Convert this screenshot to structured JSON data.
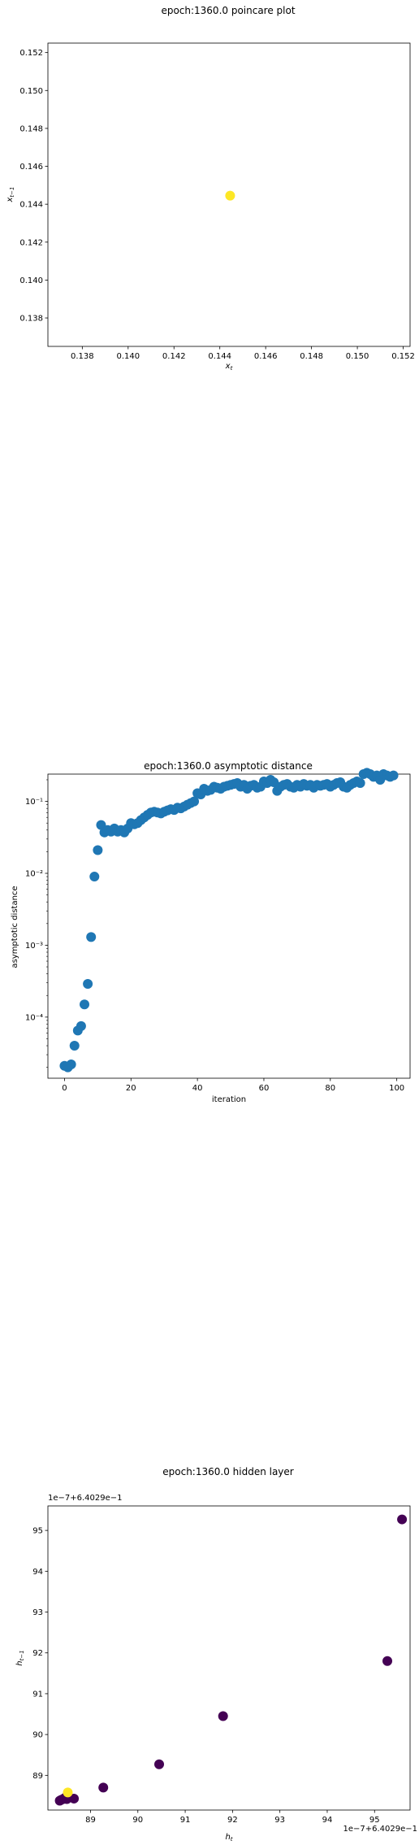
{
  "chart_data": [
    {
      "type": "scatter",
      "title": "epoch:1360.0 poincare plot",
      "xlabel": "x_t",
      "ylabel": "x_{t-1}",
      "xlim": [
        0.1365,
        0.1523
      ],
      "ylim": [
        0.1365,
        0.1525
      ],
      "xticks": [
        "0.138",
        "0.140",
        "0.142",
        "0.144",
        "0.146",
        "0.148",
        "0.150",
        "0.152"
      ],
      "yticks": [
        "0.138",
        "0.140",
        "0.142",
        "0.144",
        "0.146",
        "0.148",
        "0.150",
        "0.152"
      ],
      "points": [
        {
          "x": 0.14445,
          "y": 0.14445,
          "color": "#fde725"
        }
      ],
      "grid": false
    },
    {
      "type": "scatter",
      "title": "epoch:1360.0 asymptotic distance",
      "xlabel": "iteration",
      "ylabel": "asymptotic distance",
      "yscale": "log",
      "xlim": [
        -5,
        104
      ],
      "ylim_log10": [
        -4.85,
        -0.62
      ],
      "xticks": [
        "0",
        "20",
        "40",
        "60",
        "80",
        "100"
      ],
      "yticks": [
        "10⁻⁴",
        "10⁻³",
        "10⁻²",
        "10⁻¹"
      ],
      "series": [
        {
          "color": "#1f77b4",
          "x": [
            0,
            1,
            2,
            3,
            4,
            5,
            6,
            7,
            8,
            9,
            10,
            11,
            12,
            13,
            14,
            15,
            16,
            17,
            18,
            19,
            20,
            21,
            22,
            23,
            24,
            25,
            26,
            27,
            28,
            29,
            30,
            31,
            32,
            33,
            34,
            35,
            36,
            37,
            38,
            39,
            40,
            41,
            42,
            43,
            44,
            45,
            46,
            47,
            48,
            49,
            50,
            51,
            52,
            53,
            54,
            55,
            56,
            57,
            58,
            59,
            60,
            61,
            62,
            63,
            64,
            65,
            66,
            67,
            68,
            69,
            70,
            71,
            72,
            73,
            74,
            75,
            76,
            77,
            78,
            79,
            80,
            81,
            82,
            83,
            84,
            85,
            86,
            87,
            88,
            89,
            90,
            91,
            92,
            93,
            94,
            95,
            96,
            97,
            98,
            99
          ],
          "y": [
            2.1e-05,
            2e-05,
            2.2e-05,
            4e-05,
            6.5e-05,
            7.5e-05,
            0.00015,
            0.00029,
            0.0013,
            0.009,
            0.021,
            0.047,
            0.037,
            0.04,
            0.038,
            0.042,
            0.038,
            0.04,
            0.037,
            0.042,
            0.05,
            0.048,
            0.05,
            0.055,
            0.06,
            0.065,
            0.07,
            0.072,
            0.07,
            0.068,
            0.072,
            0.075,
            0.078,
            0.076,
            0.082,
            0.08,
            0.085,
            0.09,
            0.095,
            0.1,
            0.13,
            0.125,
            0.15,
            0.14,
            0.145,
            0.16,
            0.155,
            0.15,
            0.16,
            0.165,
            0.17,
            0.175,
            0.18,
            0.16,
            0.17,
            0.15,
            0.165,
            0.17,
            0.155,
            0.16,
            0.19,
            0.18,
            0.2,
            0.185,
            0.14,
            0.16,
            0.17,
            0.175,
            0.16,
            0.155,
            0.17,
            0.16,
            0.175,
            0.165,
            0.17,
            0.155,
            0.17,
            0.165,
            0.17,
            0.175,
            0.16,
            0.17,
            0.18,
            0.185,
            0.16,
            0.155,
            0.17,
            0.18,
            0.19,
            0.18,
            0.24,
            0.25,
            0.24,
            0.22,
            0.23,
            0.2,
            0.24,
            0.23,
            0.22,
            0.23
          ]
        }
      ],
      "grid": false
    },
    {
      "type": "scatter",
      "title": "epoch:1360.0 hidden layer",
      "xlabel": "h_t",
      "ylabel": "h_{t-1}",
      "x_offset_text": "1e−7+6.4029e−1",
      "y_offset_text": "1e−7+6.4029e−1",
      "xlim": [
        88.1,
        95.75
      ],
      "ylim": [
        88.15,
        95.6
      ],
      "xticks": [
        "89",
        "90",
        "91",
        "92",
        "93",
        "94",
        "95"
      ],
      "yticks": [
        "89",
        "90",
        "91",
        "92",
        "93",
        "94",
        "95"
      ],
      "points": [
        {
          "x": 88.35,
          "y": 88.38,
          "color": "#440154"
        },
        {
          "x": 88.38,
          "y": 88.4,
          "color": "#440154"
        },
        {
          "x": 88.42,
          "y": 88.42,
          "color": "#440154"
        },
        {
          "x": 88.46,
          "y": 88.45,
          "color": "#440154"
        },
        {
          "x": 88.5,
          "y": 88.42,
          "color": "#440154"
        },
        {
          "x": 88.65,
          "y": 88.43,
          "color": "#440154"
        },
        {
          "x": 89.27,
          "y": 88.7,
          "color": "#440154"
        },
        {
          "x": 90.45,
          "y": 89.27,
          "color": "#440154"
        },
        {
          "x": 91.8,
          "y": 90.45,
          "color": "#440154"
        },
        {
          "x": 95.27,
          "y": 91.8,
          "color": "#440154"
        },
        {
          "x": 95.58,
          "y": 95.27,
          "color": "#440154"
        },
        {
          "x": 88.52,
          "y": 88.58,
          "color": "#fde725"
        }
      ],
      "grid": false
    }
  ]
}
